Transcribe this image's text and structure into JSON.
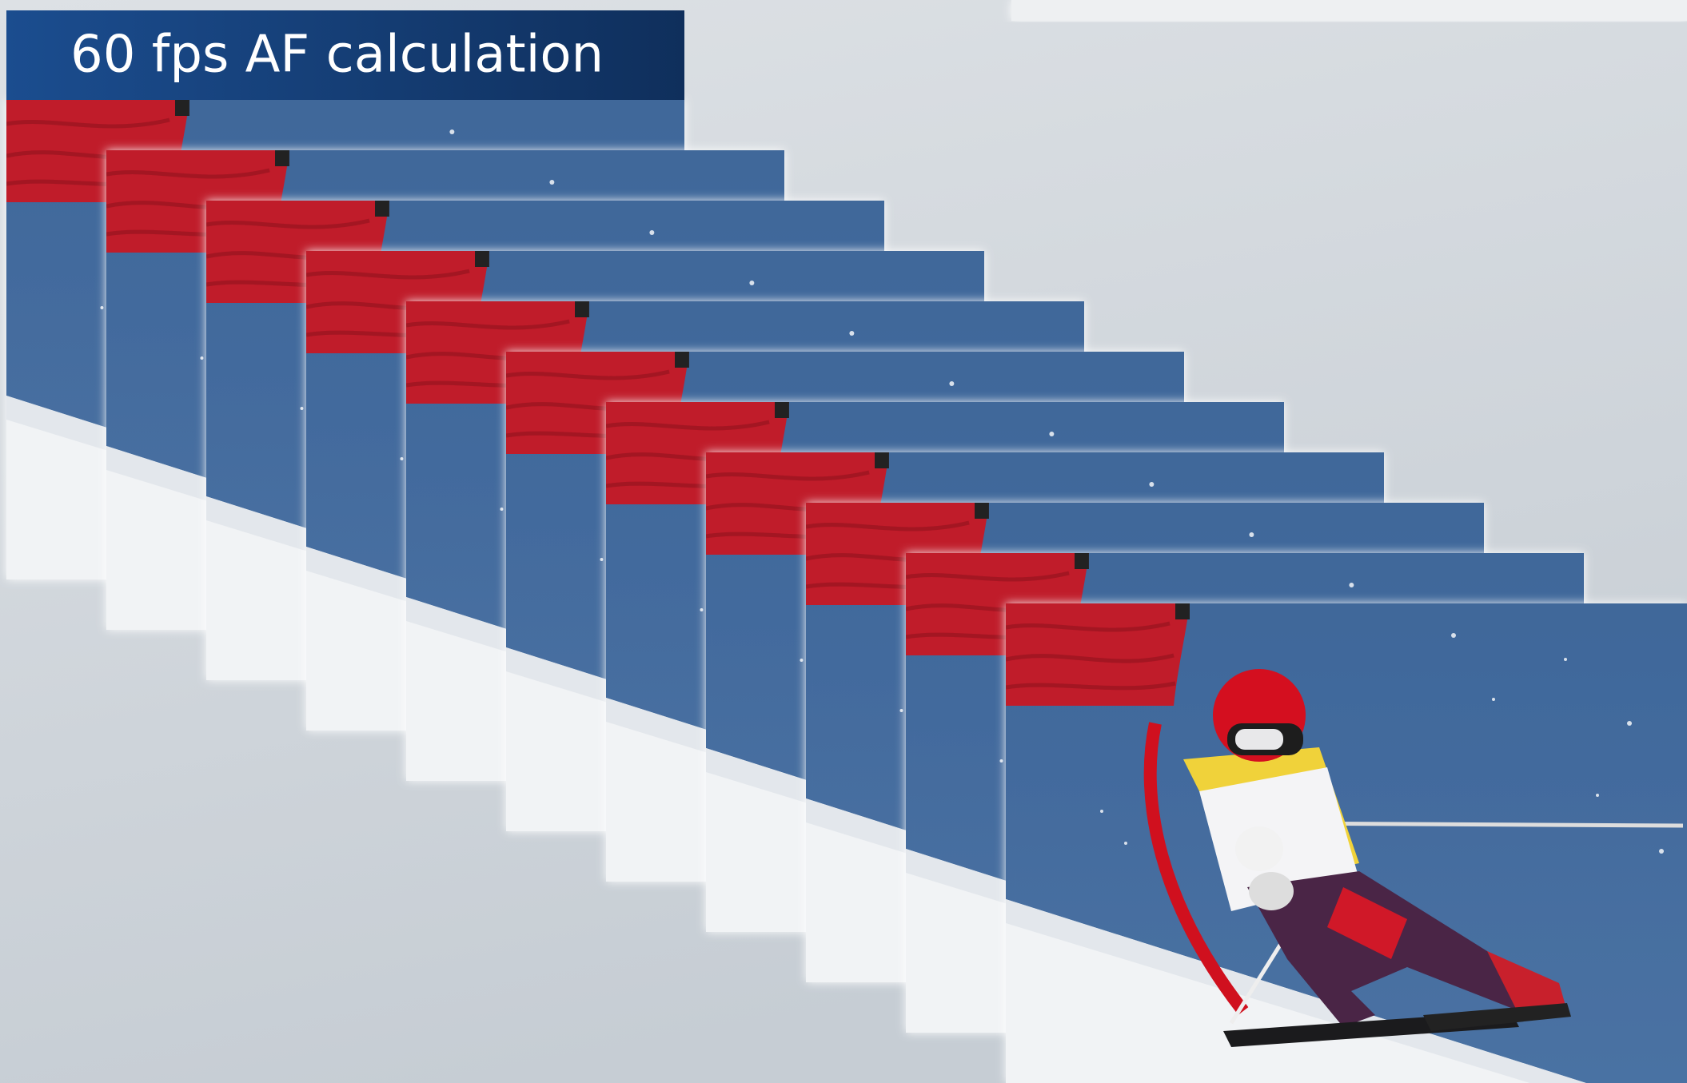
{
  "header": {
    "title": "60 fps AF calculation"
  }
}
